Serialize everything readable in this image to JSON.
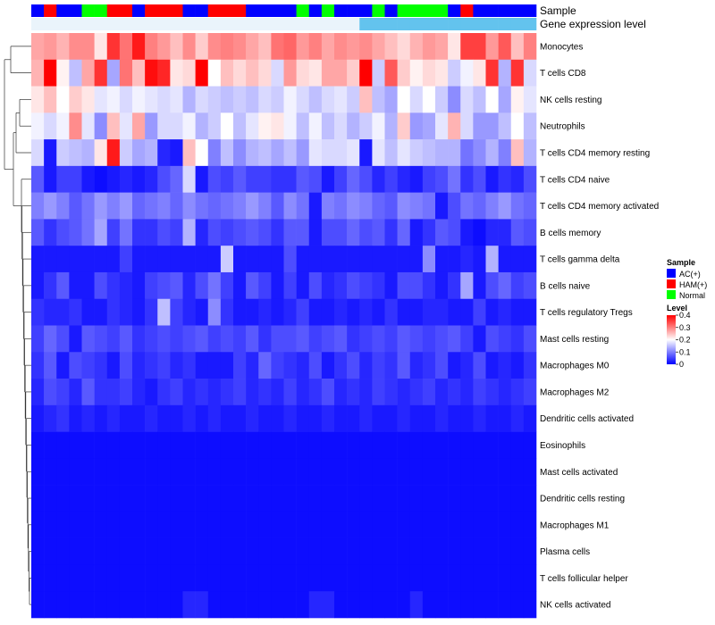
{
  "chart_data": {
    "type": "heatmap",
    "title": "",
    "annotation_tracks": [
      "Sample",
      "Gene expression level"
    ],
    "sample_groups": [
      "AC",
      "HAM",
      "AC",
      "AC",
      "NOR",
      "NOR",
      "HAM",
      "HAM",
      "AC",
      "HAM",
      "HAM",
      "HAM",
      "AC",
      "AC",
      "HAM",
      "HAM",
      "HAM",
      "AC",
      "AC",
      "AC",
      "AC",
      "NOR",
      "AC",
      "NOR",
      "AC",
      "AC",
      "AC",
      "NOR",
      "AC",
      "NOR",
      "NOR",
      "NOR",
      "NOR",
      "AC",
      "HAM",
      "AC",
      "AC",
      "AC",
      "AC",
      "AC"
    ],
    "gene_level_track": [
      0.05,
      0.05,
      0.05,
      0.05,
      0.05,
      0.05,
      0.05,
      0.05,
      0.05,
      0.05,
      0.05,
      0.05,
      0.05,
      0.05,
      0.05,
      0.05,
      0.05,
      0.05,
      0.05,
      0.05,
      0.05,
      0.05,
      0.05,
      0.05,
      0.05,
      0.05,
      0.15,
      0.15,
      0.15,
      0.15,
      0.15,
      0.15,
      0.15,
      0.15,
      0.15,
      0.15,
      0.15,
      0.15,
      0.15,
      0.15
    ],
    "rows": [
      "Monocytes",
      "T cells CD8",
      "NK cells resting",
      "Neutrophils",
      "T cells CD4 memory resting",
      "T cells CD4 naive",
      "T cells CD4 memory activated",
      "B cells memory",
      "T cells gamma delta",
      "B cells naive",
      "T cells regulatory  Tregs",
      "Mast cells resting",
      "Macrophages M0",
      "Macrophages M2",
      "Dendritic cells activated",
      "Eosinophils",
      "Mast cells activated",
      "Dendritic cells resting",
      "Macrophages M1",
      "Plasma cells",
      "T cells follicular helper",
      "NK cells activated"
    ],
    "values": [
      [
        0.27,
        0.28,
        0.26,
        0.29,
        0.29,
        0.22,
        0.36,
        0.31,
        0.38,
        0.3,
        0.28,
        0.25,
        0.29,
        0.24,
        0.29,
        0.3,
        0.29,
        0.27,
        0.25,
        0.31,
        0.32,
        0.28,
        0.3,
        0.27,
        0.29,
        0.28,
        0.29,
        0.27,
        0.25,
        0.23,
        0.26,
        0.28,
        0.27,
        0.22,
        0.35,
        0.35,
        0.28,
        0.33,
        0.25,
        0.3
      ],
      [
        0.26,
        0.4,
        0.21,
        0.15,
        0.27,
        0.36,
        0.13,
        0.31,
        0.25,
        0.39,
        0.37,
        0.22,
        0.23,
        0.4,
        0.2,
        0.25,
        0.23,
        0.25,
        0.23,
        0.17,
        0.28,
        0.23,
        0.22,
        0.27,
        0.27,
        0.24,
        0.4,
        0.16,
        0.33,
        0.24,
        0.21,
        0.23,
        0.22,
        0.16,
        0.19,
        0.22,
        0.36,
        0.14,
        0.36,
        0.17
      ],
      [
        0.22,
        0.25,
        0.2,
        0.24,
        0.22,
        0.18,
        0.19,
        0.17,
        0.19,
        0.18,
        0.17,
        0.18,
        0.14,
        0.17,
        0.16,
        0.15,
        0.16,
        0.15,
        0.17,
        0.16,
        0.19,
        0.17,
        0.15,
        0.17,
        0.18,
        0.16,
        0.25,
        0.15,
        0.13,
        0.2,
        0.17,
        0.2,
        0.16,
        0.11,
        0.17,
        0.15,
        0.2,
        0.13,
        0.21,
        0.18
      ],
      [
        0.19,
        0.17,
        0.19,
        0.29,
        0.18,
        0.11,
        0.25,
        0.18,
        0.27,
        0.12,
        0.17,
        0.17,
        0.19,
        0.14,
        0.16,
        0.2,
        0.15,
        0.18,
        0.21,
        0.22,
        0.19,
        0.15,
        0.19,
        0.15,
        0.17,
        0.14,
        0.16,
        0.19,
        0.14,
        0.24,
        0.12,
        0.13,
        0.18,
        0.26,
        0.17,
        0.12,
        0.12,
        0.15,
        0.2,
        0.15
      ],
      [
        0.17,
        0.02,
        0.16,
        0.15,
        0.14,
        0.22,
        0.38,
        0.16,
        0.13,
        0.14,
        0.03,
        0.02,
        0.25,
        0.2,
        0.1,
        0.15,
        0.11,
        0.14,
        0.15,
        0.13,
        0.15,
        0.12,
        0.18,
        0.17,
        0.17,
        0.18,
        0.02,
        0.18,
        0.15,
        0.18,
        0.16,
        0.15,
        0.14,
        0.14,
        0.09,
        0.11,
        0.14,
        0.1,
        0.25,
        0.14
      ],
      [
        0.07,
        0.02,
        0.05,
        0.05,
        0.02,
        0.01,
        0.02,
        0.03,
        0.02,
        0.03,
        0.06,
        0.08,
        0.17,
        0.02,
        0.06,
        0.05,
        0.07,
        0.05,
        0.05,
        0.04,
        0.04,
        0.07,
        0.06,
        0.02,
        0.05,
        0.08,
        0.06,
        0.03,
        0.05,
        0.03,
        0.02,
        0.05,
        0.06,
        0.09,
        0.04,
        0.06,
        0.02,
        0.04,
        0.03,
        0.06
      ],
      [
        0.1,
        0.12,
        0.1,
        0.07,
        0.09,
        0.12,
        0.1,
        0.12,
        0.08,
        0.09,
        0.1,
        0.08,
        0.11,
        0.09,
        0.08,
        0.09,
        0.1,
        0.12,
        0.1,
        0.07,
        0.11,
        0.09,
        0.02,
        0.1,
        0.09,
        0.11,
        0.1,
        0.08,
        0.07,
        0.11,
        0.1,
        0.09,
        0.02,
        0.06,
        0.09,
        0.08,
        0.1,
        0.12,
        0.09,
        0.08
      ],
      [
        0.07,
        0.04,
        0.06,
        0.07,
        0.09,
        0.13,
        0.05,
        0.09,
        0.04,
        0.04,
        0.06,
        0.05,
        0.14,
        0.03,
        0.06,
        0.05,
        0.06,
        0.07,
        0.06,
        0.04,
        0.07,
        0.07,
        0.02,
        0.06,
        0.06,
        0.08,
        0.06,
        0.07,
        0.04,
        0.08,
        0.02,
        0.04,
        0.07,
        0.06,
        0.02,
        0.01,
        0.03,
        0.03,
        0.07,
        0.06
      ],
      [
        0.02,
        0.02,
        0.02,
        0.02,
        0.02,
        0.02,
        0.02,
        0.05,
        0.02,
        0.02,
        0.02,
        0.02,
        0.02,
        0.02,
        0.02,
        0.16,
        0.02,
        0.02,
        0.02,
        0.02,
        0.06,
        0.02,
        0.02,
        0.02,
        0.02,
        0.02,
        0.02,
        0.02,
        0.02,
        0.02,
        0.02,
        0.11,
        0.02,
        0.02,
        0.03,
        0.02,
        0.14,
        0.02,
        0.02,
        0.02
      ],
      [
        0.02,
        0.04,
        0.07,
        0.02,
        0.02,
        0.06,
        0.04,
        0.03,
        0.02,
        0.05,
        0.06,
        0.07,
        0.03,
        0.06,
        0.09,
        0.05,
        0.02,
        0.07,
        0.05,
        0.02,
        0.05,
        0.02,
        0.06,
        0.03,
        0.04,
        0.06,
        0.05,
        0.04,
        0.02,
        0.06,
        0.06,
        0.04,
        0.02,
        0.04,
        0.13,
        0.02,
        0.06,
        0.08,
        0.05,
        0.06
      ],
      [
        0.04,
        0.03,
        0.03,
        0.04,
        0.02,
        0.02,
        0.04,
        0.03,
        0.02,
        0.04,
        0.15,
        0.05,
        0.03,
        0.02,
        0.11,
        0.04,
        0.02,
        0.02,
        0.03,
        0.02,
        0.03,
        0.05,
        0.02,
        0.02,
        0.03,
        0.02,
        0.03,
        0.02,
        0.04,
        0.02,
        0.02,
        0.03,
        0.03,
        0.02,
        0.02,
        0.05,
        0.02,
        0.03,
        0.02,
        0.02
      ],
      [
        0.05,
        0.08,
        0.06,
        0.02,
        0.07,
        0.06,
        0.05,
        0.07,
        0.04,
        0.05,
        0.06,
        0.05,
        0.06,
        0.07,
        0.05,
        0.06,
        0.05,
        0.07,
        0.04,
        0.06,
        0.06,
        0.07,
        0.05,
        0.06,
        0.07,
        0.04,
        0.05,
        0.06,
        0.05,
        0.07,
        0.06,
        0.05,
        0.06,
        0.07,
        0.05,
        0.02,
        0.06,
        0.05,
        0.04,
        0.06
      ],
      [
        0.04,
        0.07,
        0.02,
        0.06,
        0.05,
        0.04,
        0.02,
        0.06,
        0.03,
        0.04,
        0.05,
        0.03,
        0.04,
        0.02,
        0.02,
        0.02,
        0.05,
        0.03,
        0.08,
        0.05,
        0.04,
        0.03,
        0.06,
        0.02,
        0.04,
        0.06,
        0.03,
        0.05,
        0.04,
        0.07,
        0.03,
        0.04,
        0.06,
        0.02,
        0.03,
        0.06,
        0.02,
        0.03,
        0.02,
        0.04
      ],
      [
        0.03,
        0.06,
        0.05,
        0.03,
        0.07,
        0.04,
        0.04,
        0.05,
        0.03,
        0.02,
        0.04,
        0.05,
        0.03,
        0.04,
        0.03,
        0.04,
        0.05,
        0.03,
        0.04,
        0.03,
        0.05,
        0.03,
        0.04,
        0.06,
        0.03,
        0.04,
        0.03,
        0.05,
        0.04,
        0.03,
        0.04,
        0.05,
        0.03,
        0.04,
        0.03,
        0.05,
        0.04,
        0.03,
        0.04,
        0.05
      ],
      [
        0.02,
        0.03,
        0.04,
        0.02,
        0.03,
        0.02,
        0.03,
        0.02,
        0.02,
        0.03,
        0.02,
        0.02,
        0.03,
        0.02,
        0.03,
        0.02,
        0.02,
        0.03,
        0.02,
        0.02,
        0.03,
        0.02,
        0.02,
        0.03,
        0.02,
        0.02,
        0.03,
        0.02,
        0.02,
        0.03,
        0.02,
        0.02,
        0.03,
        0.02,
        0.02,
        0.03,
        0.02,
        0.02,
        0.03,
        0.02
      ],
      [
        0.01,
        0.01,
        0.01,
        0.01,
        0.01,
        0.01,
        0.01,
        0.01,
        0.01,
        0.01,
        0.01,
        0.01,
        0.01,
        0.01,
        0.01,
        0.01,
        0.01,
        0.01,
        0.01,
        0.01,
        0.01,
        0.01,
        0.01,
        0.01,
        0.01,
        0.01,
        0.01,
        0.01,
        0.01,
        0.01,
        0.01,
        0.01,
        0.01,
        0.01,
        0.01,
        0.01,
        0.01,
        0.01,
        0.01,
        0.01
      ],
      [
        0.01,
        0.01,
        0.01,
        0.01,
        0.01,
        0.01,
        0.01,
        0.01,
        0.01,
        0.01,
        0.01,
        0.01,
        0.01,
        0.01,
        0.01,
        0.01,
        0.01,
        0.01,
        0.01,
        0.01,
        0.01,
        0.01,
        0.01,
        0.01,
        0.01,
        0.01,
        0.01,
        0.01,
        0.01,
        0.01,
        0.01,
        0.01,
        0.01,
        0.01,
        0.01,
        0.01,
        0.01,
        0.01,
        0.01,
        0.01
      ],
      [
        0.01,
        0.01,
        0.01,
        0.01,
        0.01,
        0.01,
        0.01,
        0.01,
        0.01,
        0.01,
        0.01,
        0.01,
        0.01,
        0.01,
        0.01,
        0.01,
        0.01,
        0.01,
        0.01,
        0.01,
        0.01,
        0.01,
        0.01,
        0.01,
        0.01,
        0.01,
        0.01,
        0.01,
        0.01,
        0.01,
        0.01,
        0.01,
        0.01,
        0.01,
        0.01,
        0.01,
        0.01,
        0.01,
        0.01,
        0.01
      ],
      [
        0.01,
        0.01,
        0.01,
        0.01,
        0.01,
        0.01,
        0.01,
        0.01,
        0.01,
        0.01,
        0.01,
        0.01,
        0.01,
        0.01,
        0.01,
        0.01,
        0.01,
        0.01,
        0.01,
        0.01,
        0.01,
        0.01,
        0.01,
        0.01,
        0.01,
        0.01,
        0.01,
        0.01,
        0.01,
        0.01,
        0.01,
        0.01,
        0.01,
        0.01,
        0.01,
        0.01,
        0.01,
        0.01,
        0.01,
        0.01
      ],
      [
        0.01,
        0.01,
        0.01,
        0.01,
        0.01,
        0.01,
        0.01,
        0.01,
        0.01,
        0.01,
        0.01,
        0.01,
        0.01,
        0.01,
        0.01,
        0.01,
        0.01,
        0.01,
        0.01,
        0.01,
        0.01,
        0.01,
        0.01,
        0.01,
        0.01,
        0.01,
        0.01,
        0.01,
        0.01,
        0.01,
        0.01,
        0.01,
        0.01,
        0.01,
        0.01,
        0.01,
        0.01,
        0.01,
        0.01,
        0.01
      ],
      [
        0.01,
        0.01,
        0.01,
        0.01,
        0.01,
        0.01,
        0.01,
        0.01,
        0.01,
        0.01,
        0.01,
        0.01,
        0.01,
        0.01,
        0.01,
        0.01,
        0.01,
        0.01,
        0.01,
        0.01,
        0.01,
        0.01,
        0.01,
        0.01,
        0.01,
        0.01,
        0.01,
        0.01,
        0.01,
        0.01,
        0.01,
        0.01,
        0.01,
        0.01,
        0.01,
        0.01,
        0.01,
        0.01,
        0.01,
        0.01
      ],
      [
        0.01,
        0.01,
        0.01,
        0.01,
        0.01,
        0.01,
        0.01,
        0.01,
        0.01,
        0.01,
        0.01,
        0.01,
        0.03,
        0.03,
        0.01,
        0.01,
        0.01,
        0.01,
        0.01,
        0.01,
        0.01,
        0.01,
        0.03,
        0.03,
        0.01,
        0.01,
        0.01,
        0.01,
        0.01,
        0.01,
        0.03,
        0.01,
        0.01,
        0.01,
        0.01,
        0.01,
        0.01,
        0.01,
        0.01,
        0.01
      ]
    ],
    "group_colors": {
      "AC": "#0000ff",
      "HAM": "#ff0000",
      "NOR": "#00ff00"
    },
    "level_palette": {
      "low": "#0000ff",
      "mid": "#ffffff",
      "high": "#ff0000",
      "track_low": "#eaf4fb",
      "track_high": "#63c3ee"
    },
    "legend": {
      "sample_title": "Sample",
      "sample_items": [
        {
          "key": "AC",
          "label": "AC(+)"
        },
        {
          "key": "HAM",
          "label": "HAM(+)"
        },
        {
          "key": "NOR",
          "label": "Normal"
        }
      ],
      "level_title": "Level",
      "level_ticks": [
        0.4,
        0.3,
        0.2,
        0.1,
        0
      ],
      "level_range": [
        0,
        0.4
      ]
    }
  }
}
